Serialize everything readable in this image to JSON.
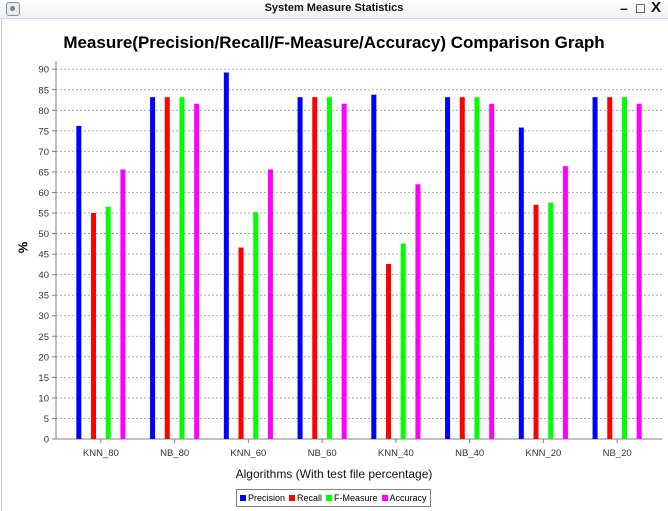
{
  "window": {
    "title": "System Measure Statistics",
    "minimize_glyph": "–",
    "maximize_glyph": "☐",
    "close_glyph": "X",
    "icon": "app-icon"
  },
  "chart_data": {
    "type": "bar",
    "title": "Measure(Precision/Recall/F-Measure/Accuracy) Comparison Graph",
    "xlabel": "Algorithms (With test file percentage)",
    "ylabel": "%",
    "ylim": [
      0,
      92
    ],
    "yticks": [
      0,
      5,
      10,
      15,
      20,
      25,
      30,
      35,
      40,
      45,
      50,
      55,
      60,
      65,
      70,
      75,
      80,
      85,
      90
    ],
    "grid": true,
    "legend_position": "bottom",
    "categories": [
      "KNN_80",
      "NB_80",
      "KNN_60",
      "NB_60",
      "KNN_40",
      "NB_40",
      "KNN_20",
      "NB_20"
    ],
    "series": [
      {
        "name": "Precision",
        "color": "#0000ff",
        "values": [
          76.2,
          83.2,
          89.2,
          83.2,
          83.8,
          83.2,
          75.8,
          83.2
        ]
      },
      {
        "name": "Recall",
        "color": "#ff0000",
        "values": [
          55.0,
          83.2,
          46.6,
          83.2,
          42.6,
          83.2,
          57.0,
          83.2
        ]
      },
      {
        "name": "F-Measure",
        "color": "#00ff00",
        "values": [
          56.5,
          83.2,
          55.2,
          83.2,
          47.6,
          83.2,
          57.5,
          83.2
        ]
      },
      {
        "name": "Accuracy",
        "color": "#ff00ff",
        "values": [
          65.6,
          81.6,
          65.6,
          81.6,
          62.0,
          81.6,
          66.4,
          81.6
        ]
      }
    ]
  }
}
